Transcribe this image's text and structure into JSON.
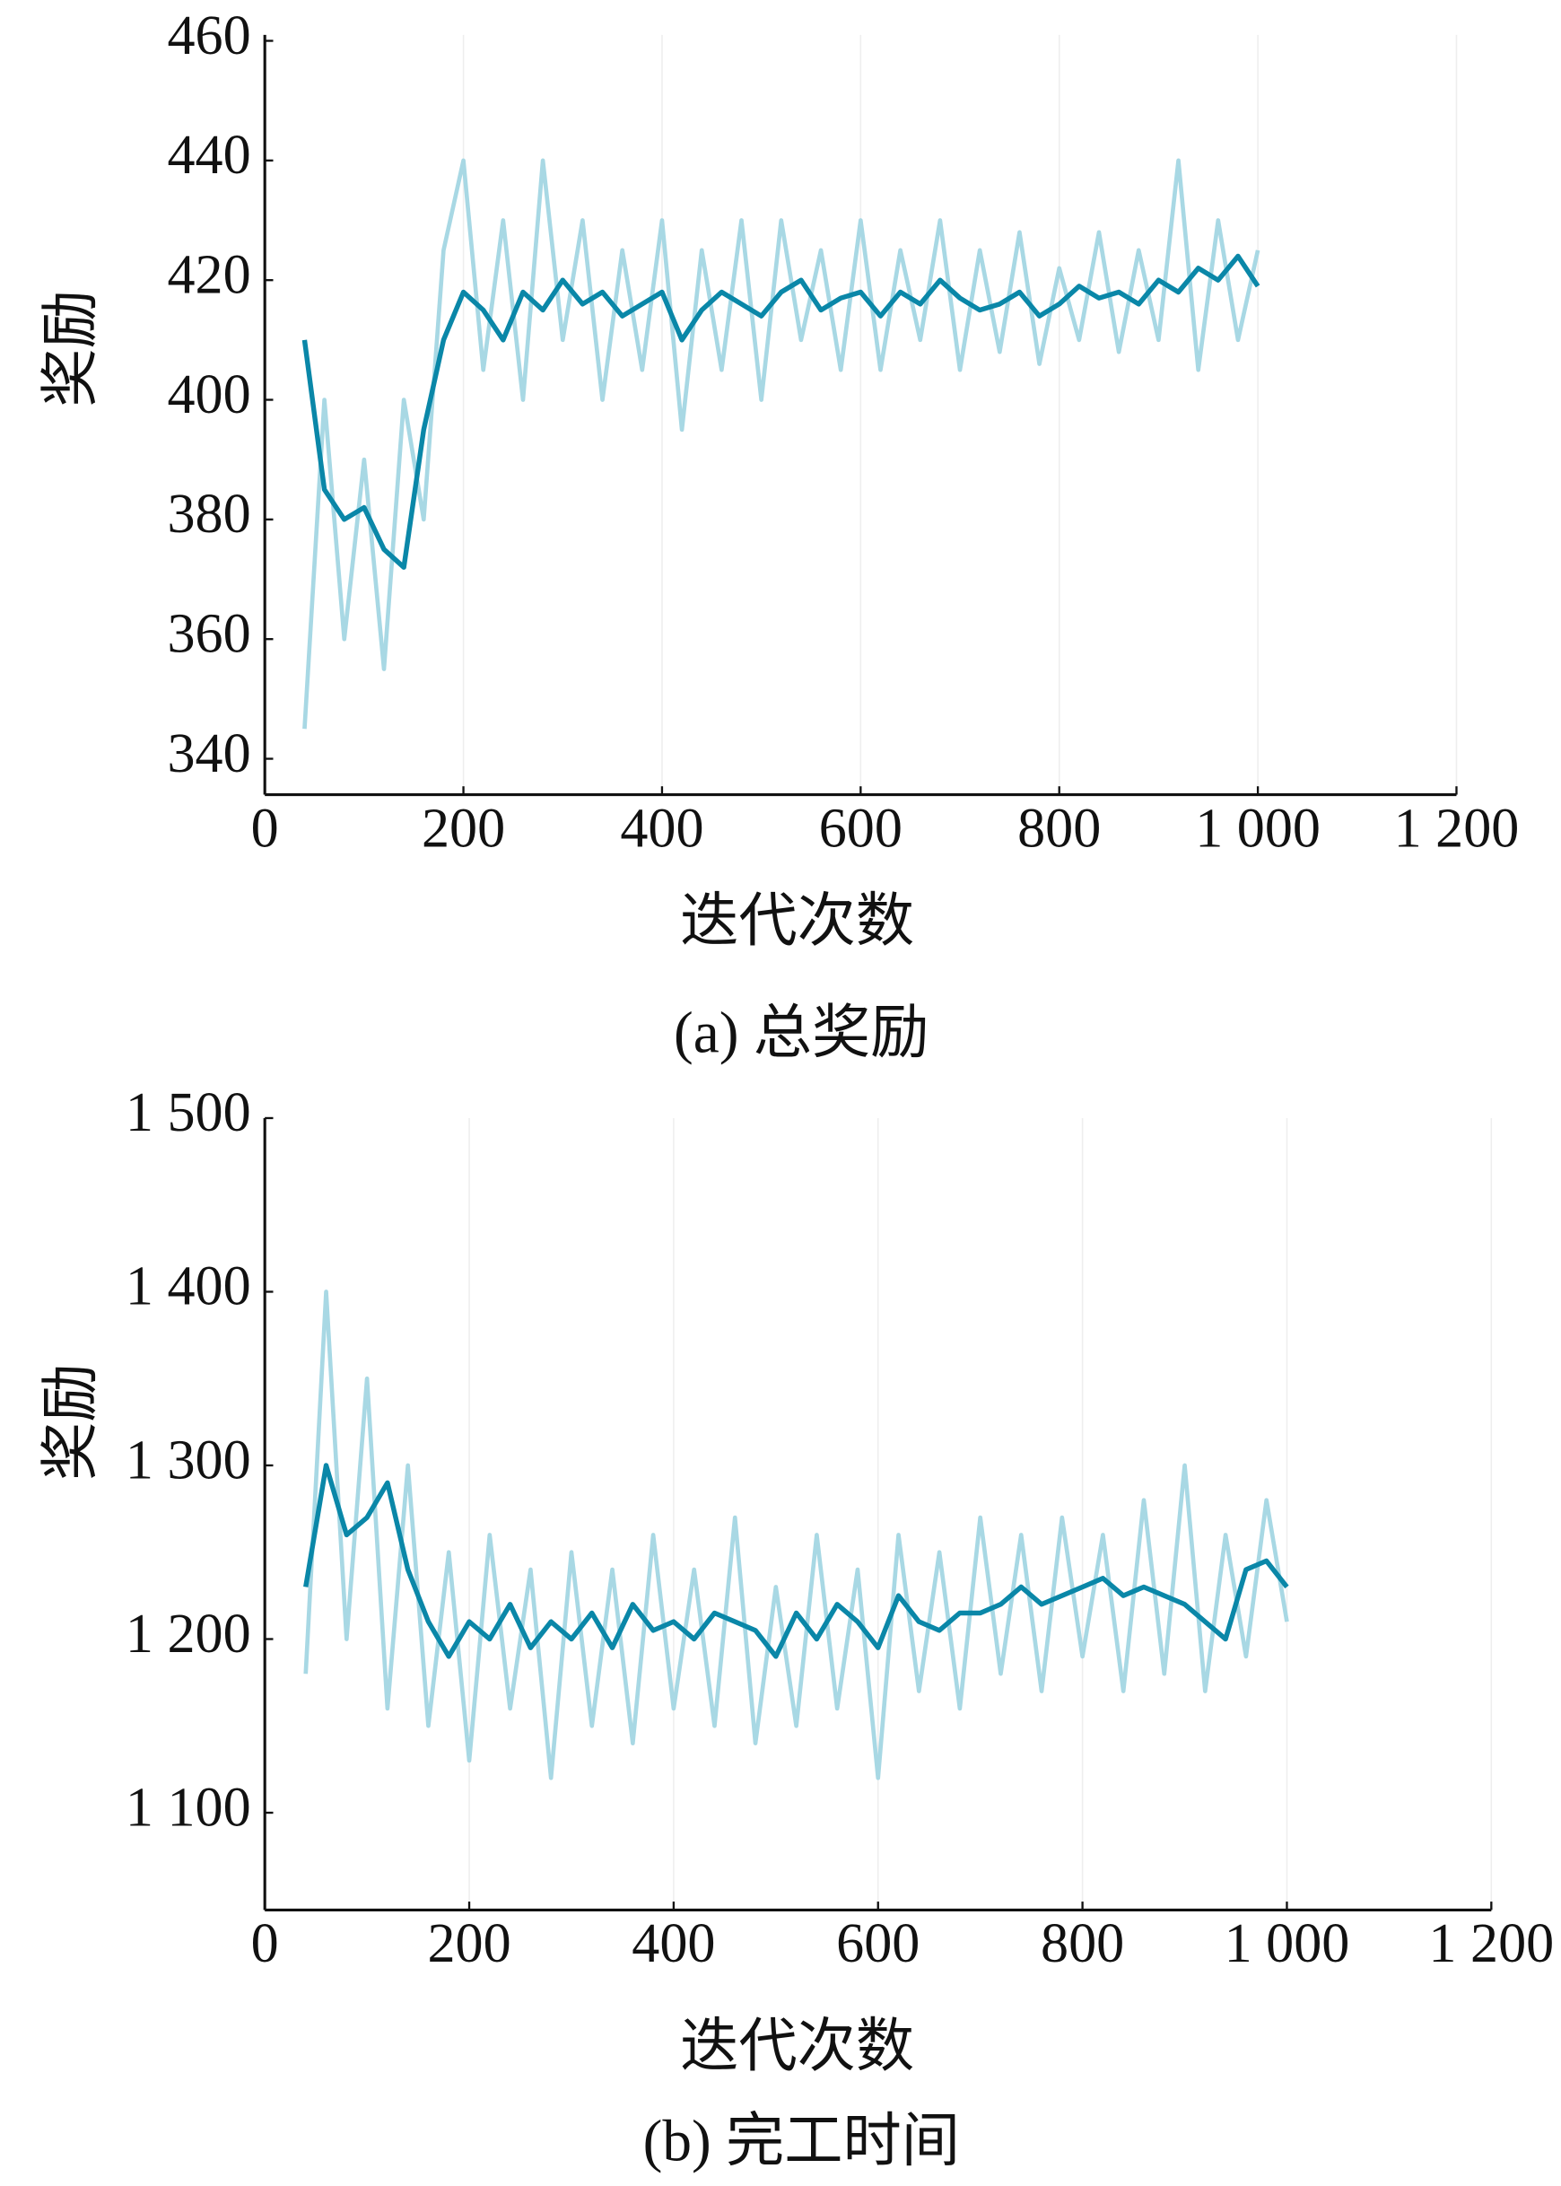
{
  "chart_data": [
    {
      "type": "line",
      "caption": "(a) 总奖励",
      "xlabel": "迭代次数",
      "ylabel": "奖励",
      "x": [
        40,
        60,
        80,
        100,
        120,
        140,
        160,
        180,
        200,
        220,
        240,
        260,
        280,
        300,
        320,
        340,
        360,
        380,
        400,
        420,
        440,
        460,
        480,
        500,
        520,
        540,
        560,
        580,
        600,
        620,
        640,
        660,
        680,
        700,
        720,
        740,
        760,
        780,
        800,
        820,
        840,
        860,
        880,
        900,
        920,
        940,
        960,
        980,
        1000
      ],
      "series": [
        {
          "color": "#a8d8e4",
          "values": [
            345,
            400,
            360,
            390,
            355,
            400,
            380,
            425,
            440,
            405,
            430,
            400,
            440,
            410,
            430,
            400,
            425,
            405,
            430,
            395,
            425,
            405,
            430,
            400,
            430,
            410,
            425,
            405,
            430,
            405,
            425,
            410,
            430,
            405,
            425,
            408,
            428,
            406,
            422,
            410,
            428,
            408,
            425,
            410,
            440,
            405,
            430,
            410,
            425
          ]
        },
        {
          "color": "#0a87a8",
          "values": [
            410,
            385,
            380,
            382,
            375,
            372,
            395,
            410,
            418,
            415,
            410,
            418,
            415,
            420,
            416,
            418,
            414,
            416,
            418,
            410,
            415,
            418,
            416,
            414,
            418,
            420,
            415,
            417,
            418,
            414,
            418,
            416,
            420,
            417,
            415,
            416,
            418,
            414,
            416,
            419,
            417,
            418,
            416,
            420,
            418,
            422,
            420,
            424,
            419
          ]
        }
      ],
      "xlim": [
        0,
        1200
      ],
      "xticks": [
        0,
        200,
        400,
        600,
        800,
        {
          "value": 1000,
          "label": "1 000"
        },
        {
          "value": 1200,
          "label": "1 200"
        }
      ],
      "ylim": [
        334,
        461
      ],
      "yticks": [
        340,
        360,
        380,
        400,
        420,
        440,
        460
      ],
      "grid": true
    },
    {
      "type": "line",
      "caption": "(b) 完工时间",
      "xlabel": "迭代次数",
      "ylabel": "奖励",
      "x": [
        40,
        60,
        80,
        100,
        120,
        140,
        160,
        180,
        200,
        220,
        240,
        260,
        280,
        300,
        320,
        340,
        360,
        380,
        400,
        420,
        440,
        460,
        480,
        500,
        520,
        540,
        560,
        580,
        600,
        620,
        640,
        660,
        680,
        700,
        720,
        740,
        760,
        780,
        800,
        820,
        840,
        860,
        880,
        900,
        920,
        940,
        960,
        980,
        1000
      ],
      "series": [
        {
          "color": "#a8d8e4",
          "values": [
            1180,
            1400,
            1200,
            1350,
            1160,
            1300,
            1150,
            1250,
            1130,
            1260,
            1160,
            1240,
            1120,
            1250,
            1150,
            1240,
            1140,
            1260,
            1160,
            1240,
            1150,
            1270,
            1140,
            1230,
            1150,
            1260,
            1160,
            1240,
            1120,
            1260,
            1170,
            1250,
            1160,
            1270,
            1180,
            1260,
            1170,
            1270,
            1190,
            1260,
            1170,
            1280,
            1180,
            1300,
            1170,
            1260,
            1190,
            1280,
            1210
          ]
        },
        {
          "color": "#0a87a8",
          "values": [
            1230,
            1300,
            1260,
            1270,
            1290,
            1240,
            1210,
            1190,
            1210,
            1200,
            1220,
            1195,
            1210,
            1200,
            1215,
            1195,
            1220,
            1205,
            1210,
            1200,
            1215,
            1210,
            1205,
            1190,
            1215,
            1200,
            1220,
            1210,
            1195,
            1225,
            1210,
            1205,
            1215,
            1215,
            1220,
            1230,
            1220,
            1225,
            1230,
            1235,
            1225,
            1230,
            1225,
            1220,
            1210,
            1200,
            1240,
            1245,
            1230
          ]
        }
      ],
      "xlim": [
        0,
        1200
      ],
      "xticks": [
        0,
        200,
        400,
        600,
        800,
        {
          "value": 1000,
          "label": "1 000"
        },
        {
          "value": 1200,
          "label": "1 200"
        }
      ],
      "ylim": [
        1044,
        1500
      ],
      "yticks": [
        {
          "value": 1100,
          "label": "1 100"
        },
        {
          "value": 1200,
          "label": "1 200"
        },
        {
          "value": 1300,
          "label": "1 300"
        },
        {
          "value": 1400,
          "label": "1 400"
        },
        {
          "value": 1500,
          "label": "1 500"
        }
      ],
      "grid": true
    }
  ]
}
